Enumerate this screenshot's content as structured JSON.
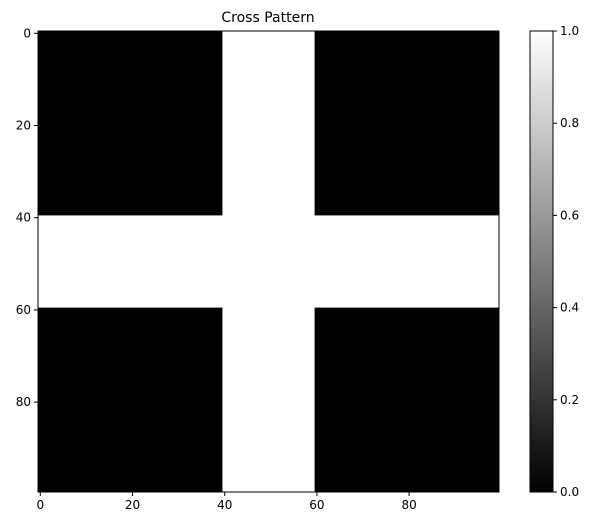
{
  "chart_data": {
    "type": "heatmap",
    "title": "Cross Pattern",
    "xlabel": "",
    "ylabel": "",
    "grid": false,
    "colormap": "gray",
    "shape": [
      100,
      100
    ],
    "xlim": [
      -0.5,
      99.5
    ],
    "ylim": [
      99.5,
      -0.5
    ],
    "x_ticks": [
      0,
      20,
      40,
      60,
      80
    ],
    "y_ticks": [
      0,
      20,
      40,
      60,
      80
    ],
    "color_range": [
      0.0,
      1.0
    ],
    "colorbar_ticks": [
      "0.0",
      "0.2",
      "0.4",
      "0.6",
      "0.8",
      "1.0"
    ],
    "colorbar_tick_values": [
      0.0,
      0.2,
      0.4,
      0.6,
      0.8,
      1.0
    ],
    "regions": [
      {
        "rows": [
          0,
          40
        ],
        "cols": [
          0,
          40
        ],
        "value": 0
      },
      {
        "rows": [
          0,
          40
        ],
        "cols": [
          40,
          60
        ],
        "value": 1
      },
      {
        "rows": [
          0,
          40
        ],
        "cols": [
          60,
          100
        ],
        "value": 0
      },
      {
        "rows": [
          40,
          60
        ],
        "cols": [
          0,
          100
        ],
        "value": 1
      },
      {
        "rows": [
          60,
          100
        ],
        "cols": [
          0,
          40
        ],
        "value": 0
      },
      {
        "rows": [
          60,
          100
        ],
        "cols": [
          40,
          60
        ],
        "value": 1
      },
      {
        "rows": [
          60,
          100
        ],
        "cols": [
          60,
          100
        ],
        "value": 0
      }
    ],
    "colors": {
      "low": "#000000",
      "high": "#ffffff",
      "axis": "#000000"
    }
  }
}
